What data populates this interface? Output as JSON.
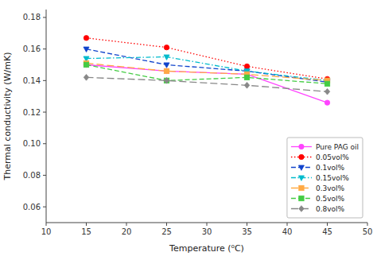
{
  "chart_data": {
    "type": "line",
    "x": [
      15,
      25,
      35,
      45
    ],
    "series": [
      {
        "name": "Pure PAG oil",
        "color": "#ff44ff",
        "marker": "circle",
        "line_style": "solid",
        "values": [
          0.15,
          0.146,
          0.144,
          0.126
        ]
      },
      {
        "name": "0.05vol%",
        "color": "#ff0000",
        "marker": "circle",
        "line_style": "dotted",
        "values": [
          0.167,
          0.161,
          0.149,
          0.141
        ]
      },
      {
        "name": "0.1vol%",
        "color": "#1144cc",
        "marker": "triangle-down",
        "line_style": "dashed",
        "values": [
          0.16,
          0.15,
          0.146,
          0.139
        ]
      },
      {
        "name": "0.15vol%",
        "color": "#00bbcc",
        "marker": "triangle-down",
        "line_style": "dashdot",
        "values": [
          0.154,
          0.155,
          0.146,
          0.14
        ]
      },
      {
        "name": "0.3vol%",
        "color": "#ffaa44",
        "marker": "square",
        "line_style": "loosely-dashed",
        "values": [
          0.151,
          0.146,
          0.144,
          0.14
        ]
      },
      {
        "name": "0.5vol%",
        "color": "#44cc44",
        "marker": "square",
        "line_style": "dashed",
        "values": [
          0.15,
          0.14,
          0.142,
          0.138
        ]
      },
      {
        "name": "0.8vol%",
        "color": "#888888",
        "marker": "diamond",
        "line_style": "loosely-dashed",
        "values": [
          0.142,
          0.14,
          0.137,
          0.133
        ]
      }
    ],
    "xlabel": "Temperature (⁰C)",
    "ylabel": "Thermal conductivity (W/mK)",
    "xlim": [
      10,
      50
    ],
    "ylim": [
      0.05,
      0.185
    ],
    "xticks": [
      10,
      15,
      20,
      25,
      30,
      35,
      40,
      45,
      50
    ],
    "yticks": [
      0.06,
      0.08,
      {
        "value": 0.1,
        "label": "0.10"
      },
      0.12,
      0.14,
      0.16,
      0.18
    ],
    "grid": false,
    "legend": "lower right"
  }
}
